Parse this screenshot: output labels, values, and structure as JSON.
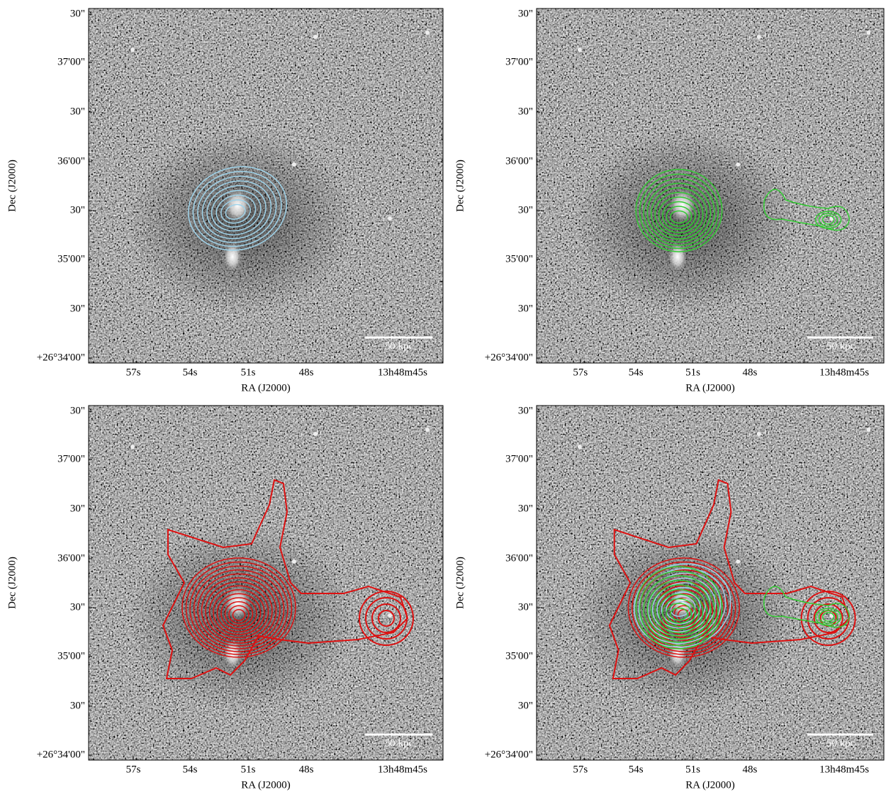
{
  "panels": [
    {
      "y_ticks": [
        "30\"",
        "37'00\"",
        "30\"",
        "36'00\"",
        "30\"",
        "35'00\"",
        "30\"",
        "+26°34'00\""
      ],
      "x_ticks": [
        "57s",
        "54s",
        "51s",
        "48s",
        "13h48m45s"
      ],
      "x_label": "RA (J2000)",
      "y_label": "Dec (J2000)",
      "scale_bar": "50 kpc"
    },
    {
      "y_ticks": [
        "30\"",
        "37'00\"",
        "30\"",
        "36'00\"",
        "30\"",
        "35'00\"",
        "30\"",
        "+26°34'00\""
      ],
      "x_ticks": [
        "57s",
        "54s",
        "51s",
        "48s",
        "13h48m45s"
      ],
      "x_label": "RA (J2000)",
      "y_label": "Dec (J2000)",
      "scale_bar": "50 kpc"
    },
    {
      "y_ticks": [
        "30\"",
        "37'00\"",
        "30\"",
        "36'00\"",
        "30\"",
        "35'00\"",
        "30\"",
        "+26°34'00\""
      ],
      "x_ticks": [
        "57s",
        "54s",
        "51s",
        "48s",
        "13h48m45s"
      ],
      "x_label": "RA (J2000)",
      "y_label": "Dec (J2000)",
      "scale_bar": "50 kpc"
    },
    {
      "y_ticks": [
        "30\"",
        "37'00\"",
        "30\"",
        "36'00\"",
        "30\"",
        "35'00\"",
        "30\"",
        "+26°34'00\""
      ],
      "x_ticks": [
        "57s",
        "54s",
        "51s",
        "48s",
        "13h48m45s"
      ],
      "x_label": "RA (J2000)",
      "y_label": "Dec (J2000)",
      "scale_bar": "50 kpc"
    }
  ]
}
